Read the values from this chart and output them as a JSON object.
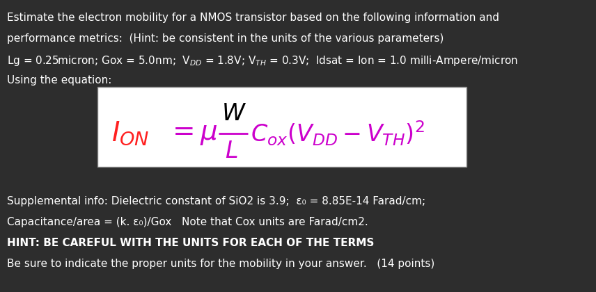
{
  "background_color": "#2d2d2d",
  "text_color": "#ffffff",
  "fig_width": 8.56,
  "fig_height": 4.2,
  "dpi": 100,
  "line1": "Estimate the electron mobility for a NMOS transistor based on the following information and",
  "line2": "performance metrics:  (Hint: be consistent in the units of the various parameters)",
  "line3": "Lg = 0.25micron; Gox = 5.0nm;  V$_{DD}$ = 1.8V; V$_{TH}$ = 0.3V;  Idsat = Ion = 1.0 milli-Ampere/micron",
  "line4": "Using the equation:",
  "supp_line": "Supplemental info: Dielectric constant of SiO2 is 3.9;  ε₀ = 8.85E-14 Farad/cm;",
  "cap_line": "Capacitance/area = (k. ε₀)/Gox   Note that Cox units are Farad/cm2.",
  "hint_line": "HINT: BE CAREFUL WITH THE UNITS FOR EACH OF THE TERMS",
  "last_line": "Be sure to indicate the proper units for the mobility in your answer.   (14 points)",
  "box_bg": "#ffffff",
  "font_size": 11,
  "formula_color_red": "#ff2020",
  "formula_color_magenta": "#cc00cc",
  "formula_color_black": "#000000"
}
